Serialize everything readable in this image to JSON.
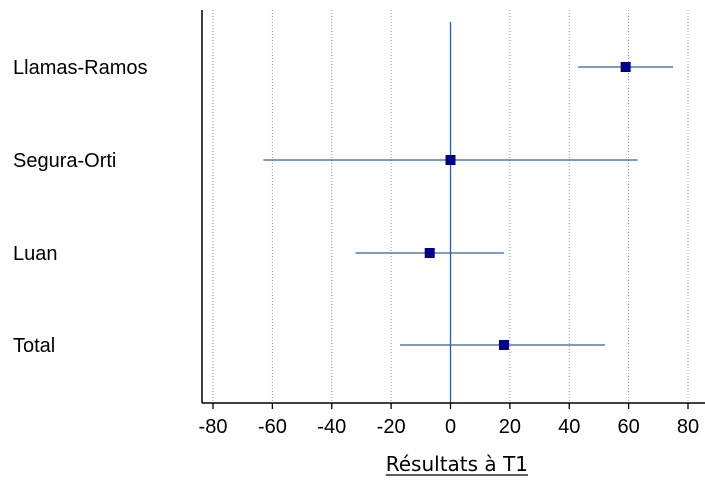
{
  "chart_data": {
    "type": "forest",
    "title": "",
    "xlabel": "Résultats à T1",
    "ylabel": "",
    "xlim": [
      -84,
      88
    ],
    "x_ticks": [
      -80,
      -60,
      -40,
      -20,
      0,
      20,
      40,
      60,
      80
    ],
    "x_tick_labels": [
      "-80",
      "-60",
      "-40",
      "-20",
      "0",
      "20",
      "40",
      "60",
      "80"
    ],
    "grid": "vertical dotted",
    "reference_line": 0,
    "studies": [
      {
        "label": "Llamas-Ramos",
        "estimate": 59,
        "ci_low": 43,
        "ci_high": 75
      },
      {
        "label": "Segura-Orti",
        "estimate": 0,
        "ci_low": -63,
        "ci_high": 63
      },
      {
        "label": "Luan",
        "estimate": -7,
        "ci_low": -32,
        "ci_high": 18
      },
      {
        "label": "Total",
        "estimate": 18,
        "ci_low": -17,
        "ci_high": 52
      }
    ],
    "colors": {
      "line": "#2e5fa6",
      "marker": "#00008b",
      "reference": "#2e5fa6",
      "grid": "#9a9a9a",
      "axis": "#000000"
    }
  }
}
